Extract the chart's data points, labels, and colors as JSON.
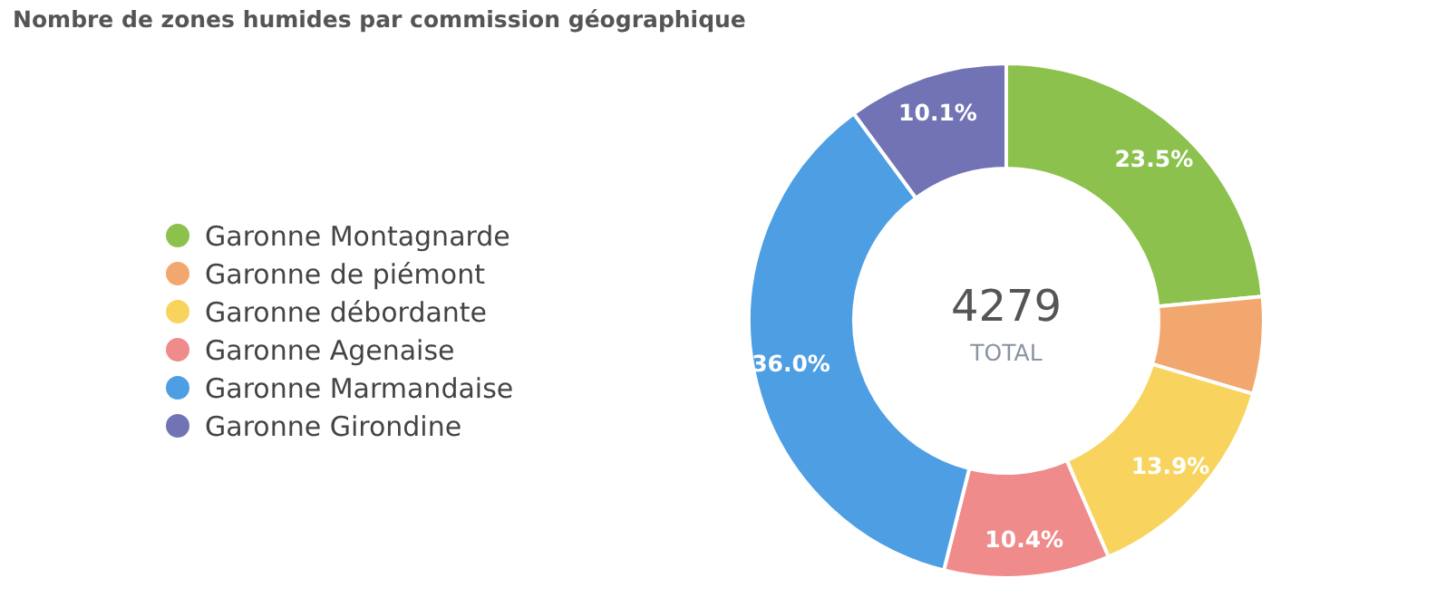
{
  "chart_data": {
    "type": "donut",
    "title": "Nombre de zones humides par commission géographique",
    "categories": [
      "Garonne Montagnarde",
      "Garonne de piémont",
      "Garonne débordante",
      "Garonne Agenaise",
      "Garonne Marmandaise",
      "Garonne Girondine"
    ],
    "values": [
      23.5,
      6.1,
      13.9,
      10.4,
      36.0,
      10.1
    ],
    "value_labels": [
      "23.5%",
      null,
      "13.9%",
      "10.4%",
      "36.0%",
      "10.1%"
    ],
    "colors": [
      "#8bc14c",
      "#f2a76f",
      "#f8d45e",
      "#ef8b8b",
      "#4e9ee3",
      "#7273b5"
    ],
    "annotations": [
      "4279",
      "TOTAL"
    ],
    "legend": "left"
  }
}
